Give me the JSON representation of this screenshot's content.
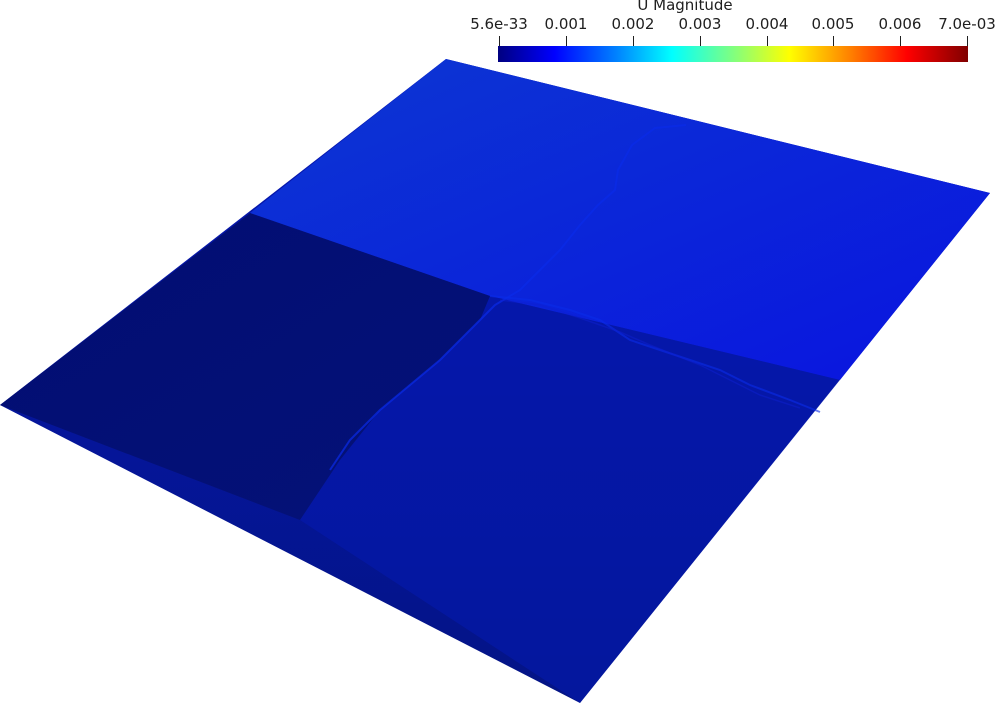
{
  "colorbar": {
    "title": "U Magnitude",
    "labels": [
      "5.6e-33",
      "0.001",
      "0.002",
      "0.003",
      "0.004",
      "0.005",
      "0.006",
      "7.0e-03"
    ],
    "range": [
      5.6e-33,
      0.007
    ],
    "colormap": "jet",
    "colors": [
      "#000080",
      "#0000ff",
      "#0080ff",
      "#00ffff",
      "#80ff80",
      "#ffff00",
      "#ff8000",
      "#ff0000",
      "#800000"
    ]
  },
  "surface": {
    "colors": {
      "upper_region": "#0b2fd6",
      "lower_left_quadrant": "#030a74",
      "lower_region": "#0518a3",
      "seam": "#0a28e0"
    }
  }
}
